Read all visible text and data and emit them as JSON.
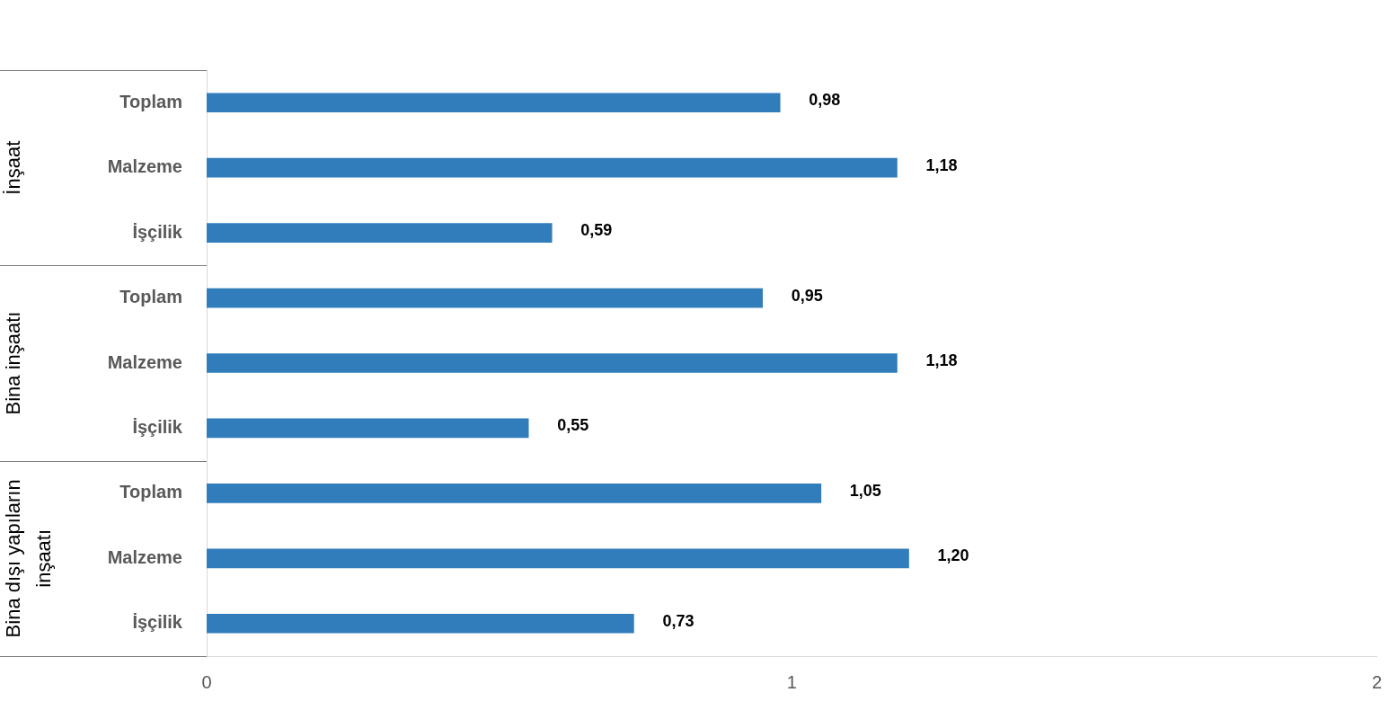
{
  "chart_data": {
    "type": "bar",
    "orientation": "horizontal",
    "categories": [
      "Toplam",
      "Malzeme",
      "İşçilik",
      "Toplam",
      "Malzeme",
      "İşçilik",
      "Toplam",
      "Malzeme",
      "İşçilik"
    ],
    "values": [
      0.98,
      1.18,
      0.59,
      0.95,
      1.18,
      0.55,
      1.05,
      1.2,
      0.73
    ],
    "value_labels": [
      "0,98",
      "1,18",
      "0,59",
      "0,95",
      "1,18",
      "0,55",
      "1,05",
      "1,20",
      "0,73"
    ],
    "color": "#317dbb",
    "xlim": [
      0,
      2
    ],
    "xticks": [
      0,
      1,
      2
    ],
    "grid": false,
    "legend": false,
    "annotations": [
      "İnşaat",
      "Bina inşaatı",
      "Bina dışı yapıların inşaatı"
    ]
  }
}
